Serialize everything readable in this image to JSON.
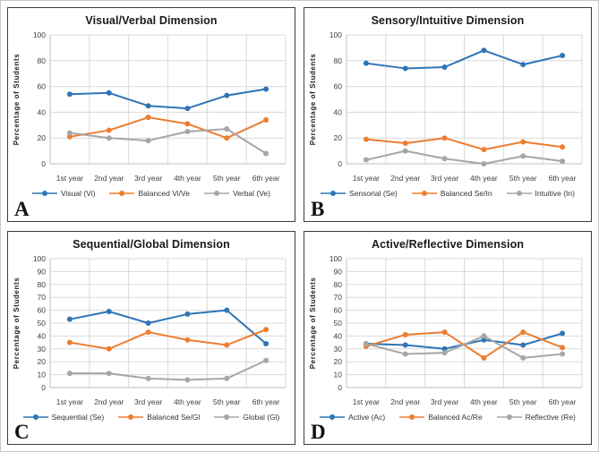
{
  "chart_data": [
    {
      "type": "line",
      "panel_label": "A",
      "title": "Visual/Verbal Dimension",
      "xlabel": "",
      "ylabel": "Percentage of Students",
      "ylim": [
        0,
        100
      ],
      "y_ticks": [
        0,
        20,
        40,
        60,
        80,
        100
      ],
      "grid": true,
      "legend_position": "bottom",
      "categories": [
        "1st year",
        "2nd year",
        "3rd year",
        "4th year",
        "5th year",
        "6th year"
      ],
      "series": [
        {
          "name": "Visual (Vi)",
          "color": "#2E75B6",
          "values": [
            54,
            55,
            45,
            43,
            53,
            58
          ]
        },
        {
          "name": "Balanced Vi/Ve",
          "color": "#ED7D31",
          "values": [
            21,
            26,
            36,
            31,
            20,
            34
          ]
        },
        {
          "name": "Verbal (Ve)",
          "color": "#A6A6A6",
          "values": [
            24,
            20,
            18,
            25,
            27,
            8
          ]
        }
      ]
    },
    {
      "type": "line",
      "panel_label": "B",
      "title": "Sensory/Intuitive Dimension",
      "xlabel": "",
      "ylabel": "Percentage of Students",
      "ylim": [
        0,
        100
      ],
      "y_ticks": [
        0,
        20,
        40,
        60,
        80,
        100
      ],
      "grid": true,
      "legend_position": "bottom",
      "categories": [
        "1st year",
        "2nd year",
        "3rd year",
        "4th year",
        "5th year",
        "6th year"
      ],
      "series": [
        {
          "name": "Sensorial (Se)",
          "color": "#2E75B6",
          "values": [
            78,
            74,
            75,
            88,
            77,
            84
          ]
        },
        {
          "name": "Balanced Se/In",
          "color": "#ED7D31",
          "values": [
            19,
            16,
            20,
            11,
            17,
            13
          ]
        },
        {
          "name": "Intuitive (In)",
          "color": "#A6A6A6",
          "values": [
            3,
            10,
            4,
            0,
            6,
            2
          ]
        }
      ]
    },
    {
      "type": "line",
      "panel_label": "C",
      "title": "Sequential/Global Dimension",
      "xlabel": "",
      "ylabel": "Percentage of Students",
      "ylim": [
        0,
        100
      ],
      "y_ticks": [
        0,
        10,
        20,
        30,
        40,
        50,
        60,
        70,
        80,
        90,
        100
      ],
      "grid": true,
      "legend_position": "bottom",
      "categories": [
        "1st year",
        "2nd year",
        "3rd year",
        "4th year",
        "5th year",
        "6th year"
      ],
      "series": [
        {
          "name": "Sequential (Se)",
          "color": "#2E75B6",
          "values": [
            53,
            59,
            50,
            57,
            60,
            34
          ]
        },
        {
          "name": "Balanced Se/Gl",
          "color": "#ED7D31",
          "values": [
            35,
            30,
            43,
            37,
            33,
            45
          ]
        },
        {
          "name": "Global (Gl)",
          "color": "#A6A6A6",
          "values": [
            11,
            11,
            7,
            6,
            7,
            21
          ]
        }
      ]
    },
    {
      "type": "line",
      "panel_label": "D",
      "title": "Active/Reflective Dimension",
      "xlabel": "",
      "ylabel": "Percentage of Students",
      "ylim": [
        0,
        100
      ],
      "y_ticks": [
        0,
        10,
        20,
        30,
        40,
        50,
        60,
        70,
        80,
        90,
        100
      ],
      "grid": true,
      "legend_position": "bottom",
      "categories": [
        "1st year",
        "2nd year",
        "3rd year",
        "4th year",
        "5th year",
        "6th year"
      ],
      "series": [
        {
          "name": "Active (Ac)",
          "color": "#2E75B6",
          "values": [
            34,
            33,
            30,
            37,
            33,
            42
          ]
        },
        {
          "name": "Balanced Ac/Re",
          "color": "#ED7D31",
          "values": [
            32,
            41,
            43,
            23,
            43,
            31
          ]
        },
        {
          "name": "Reflective (Re)",
          "color": "#A6A6A6",
          "values": [
            34,
            26,
            27,
            40,
            23,
            26
          ]
        }
      ]
    }
  ]
}
